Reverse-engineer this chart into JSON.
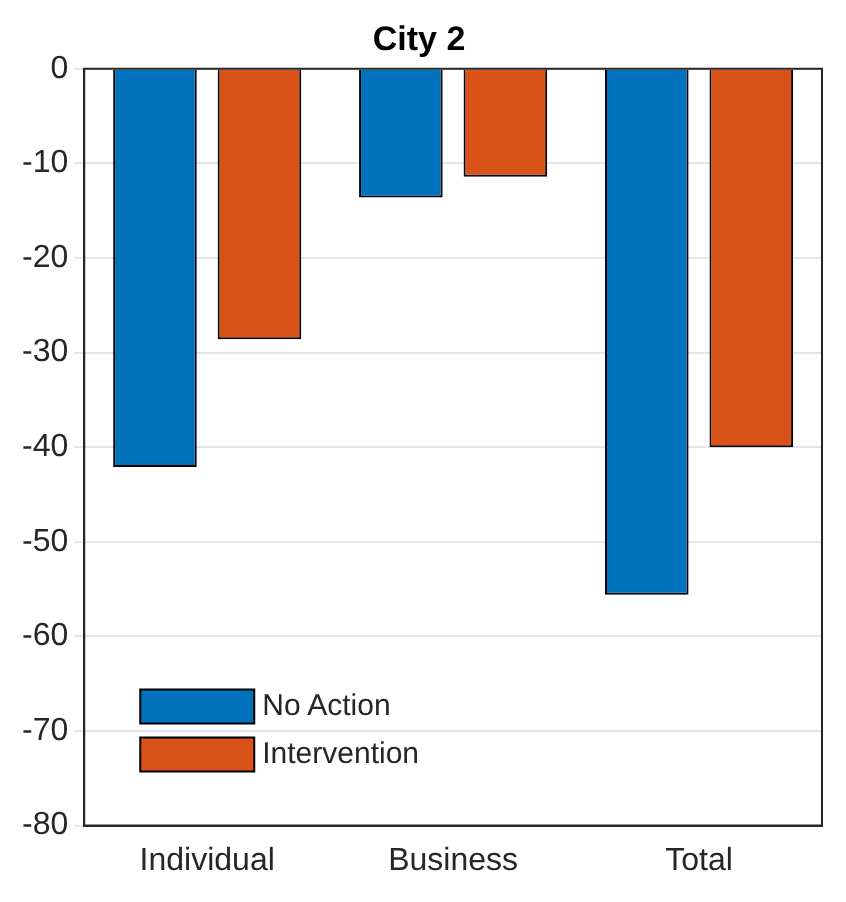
{
  "chart_data": {
    "type": "bar",
    "title": "City 2",
    "categories": [
      "Individual",
      "Business",
      "Total"
    ],
    "series": [
      {
        "name": "No Action",
        "color": "#0072bd",
        "values": [
          -42.1,
          -13.6,
          -55.6
        ]
      },
      {
        "name": "Intervention",
        "color": "#d95319",
        "values": [
          -28.6,
          -11.4,
          -40.0
        ]
      }
    ],
    "ylim": [
      -80,
      0
    ],
    "yticks": [
      -80,
      -70,
      -60,
      -50,
      -40,
      -30,
      -20,
      -10,
      0
    ],
    "grid": "y",
    "legend": "bottom left"
  }
}
